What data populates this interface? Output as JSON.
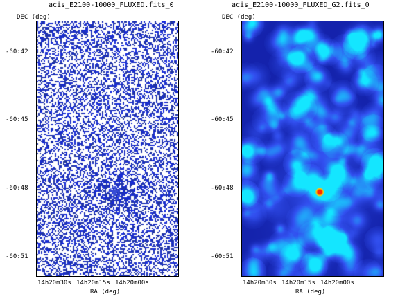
{
  "panels": [
    {
      "title": "acis_E2100-10000_FLUXED.fits_0",
      "y_axis_label": "DEC (deg)",
      "x_axis_label": "RA (deg)",
      "y_ticks": [
        "-60:42",
        "-60:45",
        "-60:48",
        "-60:51"
      ],
      "x_ticks": [
        "14h20m30s",
        "14h20m15s",
        "14h20m00s"
      ],
      "style": "raw"
    },
    {
      "title": "acis_E2100-10000_FLUXED_G2.fits_0",
      "y_axis_label": "DEC (deg)",
      "x_axis_label": "RA (deg)",
      "y_ticks": [
        "-60:42",
        "-60:45",
        "-60:48",
        "-60:51"
      ],
      "x_ticks": [
        "14h20m30s",
        "14h20m15s",
        "14h20m00s"
      ],
      "style": "smoothed"
    }
  ],
  "colors": {
    "raw_pixel": "#3a4fd8",
    "smoothed_low": "#1a22c8",
    "smoothed_mid": "#3aa0ff",
    "source_core": "#ff2a00",
    "source_halo": "#ffe000"
  }
}
